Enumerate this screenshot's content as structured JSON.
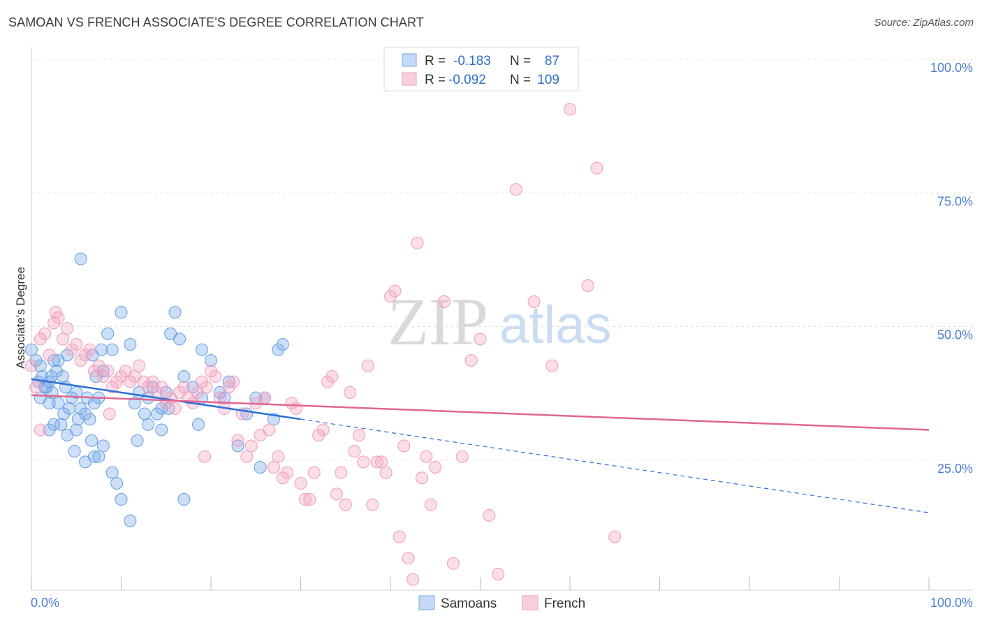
{
  "title": "SAMOAN VS FRENCH ASSOCIATE'S DEGREE CORRELATION CHART",
  "source": "Source: ZipAtlas.com",
  "watermark": {
    "zip": "ZIP",
    "atlas": "atlas"
  },
  "colors": {
    "samoans": "#6fa3e6",
    "samoans_line": "#2a6fd4",
    "french": "#f2a0bd",
    "french_line": "#e0668f",
    "tick_label": "#4a7fd0"
  },
  "legend": {
    "r_label": "R =",
    "n_label": "N =",
    "rows": [
      {
        "series": "Samoans",
        "r": "-0.183",
        "n": "87"
      },
      {
        "series": "French",
        "r": "-0.092",
        "n": "109"
      }
    ]
  },
  "bottom_legend": [
    "Samoans",
    "French"
  ],
  "chart_data": {
    "type": "scatter",
    "title": "SAMOAN VS FRENCH ASSOCIATE'S DEGREE CORRELATION CHART",
    "xlabel": "",
    "ylabel": "Associate's Degree",
    "xlim": [
      0,
      100
    ],
    "ylim": [
      0,
      100
    ],
    "x_tick_labels": [
      "0.0%",
      "100.0%"
    ],
    "y_tick_labels": [
      "25.0%",
      "50.0%",
      "75.0%",
      "100.0%"
    ],
    "y_ticks": [
      25,
      50,
      75,
      100
    ],
    "grid": true,
    "legend_position": "top-center",
    "series": [
      {
        "name": "Samoans",
        "trend": {
          "x": [
            0,
            30
          ],
          "y": [
            39.5,
            32.0
          ],
          "dashed_to": [
            100,
            14.5
          ]
        },
        "points": [
          [
            0,
            45
          ],
          [
            0.5,
            43
          ],
          [
            1,
            42
          ],
          [
            0.8,
            39
          ],
          [
            1.5,
            38
          ],
          [
            1.2,
            40
          ],
          [
            2,
            39
          ],
          [
            1.7,
            38
          ],
          [
            2.3,
            37
          ],
          [
            2.5,
            43
          ],
          [
            3,
            43
          ],
          [
            2.8,
            41
          ],
          [
            3.5,
            40
          ],
          [
            4,
            44
          ],
          [
            3.8,
            38
          ],
          [
            4.5,
            36
          ],
          [
            4.2,
            34
          ],
          [
            5,
            37
          ],
          [
            5.5,
            34
          ],
          [
            5.2,
            32
          ],
          [
            6,
            33
          ],
          [
            6.5,
            32
          ],
          [
            6.2,
            36
          ],
          [
            7,
            35
          ],
          [
            7.5,
            36
          ],
          [
            7.2,
            40
          ],
          [
            8,
            41
          ],
          [
            6.8,
            44
          ],
          [
            7.8,
            45
          ],
          [
            8.5,
            48
          ],
          [
            9,
            45
          ],
          [
            10,
            52
          ],
          [
            11,
            46
          ],
          [
            12,
            37
          ],
          [
            13,
            36
          ],
          [
            13.5,
            38
          ],
          [
            11.5,
            35
          ],
          [
            14,
            33
          ],
          [
            14.5,
            34
          ],
          [
            15,
            37
          ],
          [
            16,
            52
          ],
          [
            15.5,
            48
          ],
          [
            16.5,
            47
          ],
          [
            17,
            40
          ],
          [
            18,
            38
          ],
          [
            19,
            45
          ],
          [
            20,
            43
          ],
          [
            21,
            37
          ],
          [
            22,
            39
          ],
          [
            24,
            33
          ],
          [
            25,
            36
          ],
          [
            26,
            36
          ],
          [
            27,
            32
          ],
          [
            28,
            46
          ],
          [
            27.5,
            45
          ],
          [
            23,
            27
          ],
          [
            5.5,
            62
          ],
          [
            3,
            35
          ],
          [
            2,
            30
          ],
          [
            2.5,
            31
          ],
          [
            4,
            29
          ],
          [
            5,
            30
          ],
          [
            6,
            24
          ],
          [
            7,
            25
          ],
          [
            8,
            27
          ],
          [
            7.5,
            25
          ],
          [
            9,
            22
          ],
          [
            10,
            17
          ],
          [
            11,
            13
          ],
          [
            13,
            31
          ],
          [
            14.5,
            30
          ],
          [
            17,
            17
          ],
          [
            19,
            36
          ],
          [
            21.5,
            36
          ],
          [
            25.5,
            23
          ],
          [
            2,
            35
          ],
          [
            3.3,
            31
          ],
          [
            4.8,
            26
          ],
          [
            6.7,
            28
          ],
          [
            9.5,
            20
          ],
          [
            11.8,
            28
          ],
          [
            15.3,
            34
          ],
          [
            18.6,
            31
          ],
          [
            1,
            36
          ],
          [
            3.6,
            33
          ],
          [
            2.2,
            40
          ],
          [
            12.6,
            33
          ]
        ]
      },
      {
        "name": "French",
        "trend": {
          "x": [
            0,
            100
          ],
          "y": [
            36.5,
            30.0
          ]
        },
        "points": [
          [
            0,
            42
          ],
          [
            0.5,
            38
          ],
          [
            1,
            47
          ],
          [
            1.5,
            48
          ],
          [
            2,
            44
          ],
          [
            2.5,
            50
          ],
          [
            3,
            51
          ],
          [
            3.5,
            47
          ],
          [
            4,
            49
          ],
          [
            4.5,
            45
          ],
          [
            5,
            46
          ],
          [
            5.5,
            43
          ],
          [
            6,
            44
          ],
          [
            6.5,
            45
          ],
          [
            7,
            41
          ],
          [
            7.5,
            42
          ],
          [
            8,
            40
          ],
          [
            8.5,
            41
          ],
          [
            9,
            38
          ],
          [
            9.5,
            39
          ],
          [
            10,
            40
          ],
          [
            10.5,
            41
          ],
          [
            11,
            39
          ],
          [
            11.5,
            40
          ],
          [
            12,
            42
          ],
          [
            12.5,
            39
          ],
          [
            13,
            38
          ],
          [
            13.5,
            39
          ],
          [
            14,
            37
          ],
          [
            14.5,
            38
          ],
          [
            15,
            35
          ],
          [
            15.5,
            36
          ],
          [
            16,
            34
          ],
          [
            16.5,
            37
          ],
          [
            17,
            38
          ],
          [
            17.5,
            36
          ],
          [
            18,
            35
          ],
          [
            18.5,
            37
          ],
          [
            19,
            39
          ],
          [
            19.5,
            38
          ],
          [
            20,
            41
          ],
          [
            20.5,
            40
          ],
          [
            21,
            36
          ],
          [
            21.5,
            34
          ],
          [
            22,
            38
          ],
          [
            22.5,
            39
          ],
          [
            23,
            28
          ],
          [
            23.5,
            33
          ],
          [
            24,
            25
          ],
          [
            24.5,
            27
          ],
          [
            25,
            35
          ],
          [
            25.5,
            29
          ],
          [
            26,
            36
          ],
          [
            26.5,
            30
          ],
          [
            27,
            23
          ],
          [
            27.5,
            25
          ],
          [
            28,
            21
          ],
          [
            28.5,
            22
          ],
          [
            29,
            35
          ],
          [
            29.5,
            34
          ],
          [
            30,
            20
          ],
          [
            30.5,
            17
          ],
          [
            31,
            17
          ],
          [
            31.5,
            22
          ],
          [
            32,
            29
          ],
          [
            32.5,
            30
          ],
          [
            33,
            39
          ],
          [
            33.5,
            40
          ],
          [
            34,
            18
          ],
          [
            34.5,
            22
          ],
          [
            35,
            16
          ],
          [
            35.5,
            37
          ],
          [
            36,
            26
          ],
          [
            36.5,
            29
          ],
          [
            37,
            24
          ],
          [
            37.5,
            42
          ],
          [
            38,
            16
          ],
          [
            38.5,
            24
          ],
          [
            39,
            24
          ],
          [
            39.5,
            22
          ],
          [
            40,
            55
          ],
          [
            40.5,
            56
          ],
          [
            41,
            10
          ],
          [
            41.5,
            27
          ],
          [
            42,
            6
          ],
          [
            42.5,
            2
          ],
          [
            43,
            65
          ],
          [
            43.5,
            21
          ],
          [
            44,
            25
          ],
          [
            44.5,
            16
          ],
          [
            45,
            23
          ],
          [
            46,
            54
          ],
          [
            47,
            5
          ],
          [
            48,
            25
          ],
          [
            49,
            43
          ],
          [
            50,
            47
          ],
          [
            51,
            14
          ],
          [
            52,
            3
          ],
          [
            54,
            75
          ],
          [
            56,
            54
          ],
          [
            58,
            42
          ],
          [
            60,
            90
          ],
          [
            62,
            57
          ],
          [
            63,
            79
          ],
          [
            65,
            10
          ],
          [
            1,
            30
          ],
          [
            2.7,
            52
          ],
          [
            8.7,
            33
          ],
          [
            19.3,
            25
          ]
        ]
      }
    ]
  }
}
